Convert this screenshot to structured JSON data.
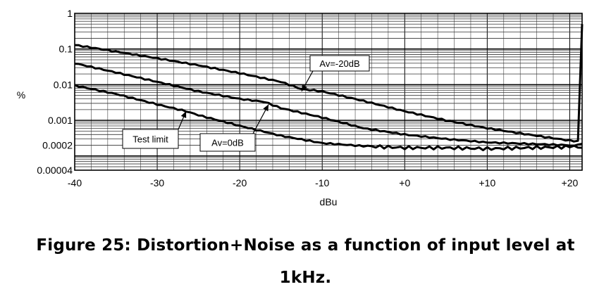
{
  "chart_data": {
    "type": "line",
    "xlabel": "dBu",
    "ylabel": "%",
    "xlim": [
      -40,
      21.5
    ],
    "ylim": [
      4e-05,
      1
    ],
    "yscale": "log",
    "grid": true,
    "x_ticks": [
      -40,
      -30,
      -20,
      -10,
      0,
      10,
      20
    ],
    "x_tick_labels": [
      "-40",
      "-30",
      "-20",
      "-10",
      "+0",
      "+10",
      "+20"
    ],
    "y_ticks": [
      1,
      0.1,
      0.01,
      0.001,
      0.0002,
      4e-05
    ],
    "y_tick_labels": [
      "1",
      "0.1",
      "0.01",
      "0.001",
      "0.0002",
      "0.00004"
    ],
    "series": [
      {
        "name": "Av=-20dB",
        "x": [
          -40,
          -38,
          -35,
          -30,
          -25,
          -20,
          -15,
          -12.5,
          -10,
          -5,
          0,
          5,
          10,
          15,
          20,
          21,
          21.5
        ],
        "y": [
          0.13,
          0.11,
          0.085,
          0.055,
          0.035,
          0.021,
          0.012,
          0.0075,
          0.0065,
          0.0035,
          0.0018,
          0.001,
          0.0006,
          0.0004,
          0.00027,
          0.00026,
          0.5
        ]
      },
      {
        "name": "Av=0dB",
        "x": [
          -40,
          -35,
          -30,
          -25,
          -20,
          -17,
          -15,
          -10,
          -5,
          0,
          5,
          10,
          15,
          20,
          21.5
        ],
        "y": [
          0.04,
          0.022,
          0.012,
          0.0065,
          0.004,
          0.0033,
          0.0022,
          0.0012,
          0.0006,
          0.0004,
          0.0003,
          0.00024,
          0.00022,
          0.0002,
          0.00017
        ]
      },
      {
        "name": "Test limit",
        "x": [
          -40,
          -35,
          -30,
          -26.5,
          -25,
          -20,
          -15,
          -10,
          -5,
          0,
          5,
          10,
          15,
          20,
          21.5
        ],
        "y": [
          0.0095,
          0.0055,
          0.0028,
          0.0018,
          0.0014,
          0.0007,
          0.00037,
          0.00023,
          0.00019,
          0.00017,
          0.00017,
          0.00016,
          0.00017,
          0.00018,
          0.00022
        ]
      }
    ],
    "annotations": [
      {
        "text": "Av=-20dB",
        "target_x": -12.5,
        "target_y": 0.0065
      },
      {
        "text": "Av=0dB",
        "target_x": -16.5,
        "target_y": 0.0028
      },
      {
        "text": "Test limit",
        "target_x": -26.5,
        "target_y": 0.0018
      }
    ]
  },
  "caption": {
    "line1": "Figure 25: Distortion+Noise as a function of input level at",
    "line2": "1kHz."
  }
}
